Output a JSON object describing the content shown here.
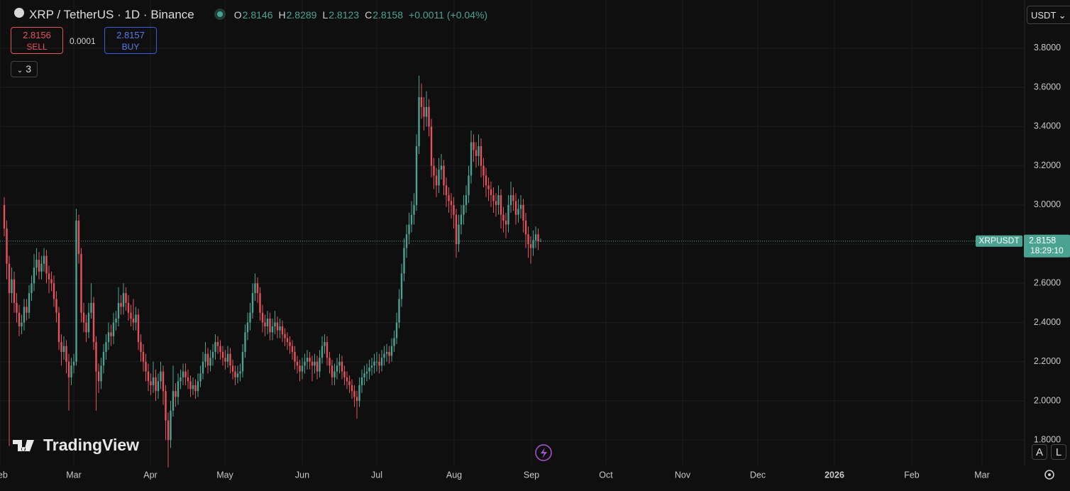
{
  "ui": {
    "title": "XRP / TetherUS · 1D · Binance",
    "o_label": "O",
    "o": "2.8146",
    "h_label": "H",
    "h": "2.8289",
    "l_label": "L",
    "l": "2.8123",
    "c_label": "C",
    "c": "2.8158",
    "change": "+0.0011 (+0.04%)",
    "sell_price": "2.8156",
    "sell": "SELL",
    "spread": "0.0001",
    "buy_price": "2.8157",
    "buy": "BUY",
    "indicators": "3",
    "currency": "USDT",
    "brand": "TradingView",
    "auto": "A",
    "log": "L"
  },
  "chart_data": {
    "type": "candlestick",
    "up_color": "#4aa391",
    "down_color": "#e5525d",
    "grid": true,
    "ylim": [
      1.674,
      4.046
    ],
    "yticks": [
      {
        "value": 1.8,
        "label": "1.8000"
      },
      {
        "value": 2.0,
        "label": "2.0000"
      },
      {
        "value": 2.2,
        "label": "2.2000"
      },
      {
        "value": 2.4,
        "label": "2.4000"
      },
      {
        "value": 2.6,
        "label": "2.6000"
      },
      {
        "value": 2.8,
        "label": "2.8000"
      },
      {
        "value": 3.0,
        "label": "3.0000"
      },
      {
        "value": 3.2,
        "label": "3.2000"
      },
      {
        "value": 3.4,
        "label": "3.4000"
      },
      {
        "value": 3.6,
        "label": "3.6000"
      },
      {
        "value": 3.8,
        "label": "3.8000"
      }
    ],
    "x_labels": [
      "Feb",
      "Mar",
      "Apr",
      "May",
      "Jun",
      "Jul",
      "Aug",
      "Sep",
      "Oct",
      "Nov",
      "Dec",
      "2026",
      "Feb",
      "Mar"
    ],
    "last_price": 2.8158,
    "symbol_tag": "XRPUSDT",
    "countdown": "18:29:10",
    "ohlc": [
      [
        3.0,
        3.04,
        2.84,
        2.88
      ],
      [
        2.88,
        2.92,
        2.62,
        2.7
      ],
      [
        2.7,
        2.74,
        1.77,
        2.55
      ],
      [
        2.55,
        2.68,
        2.5,
        2.62
      ],
      [
        2.62,
        2.66,
        2.45,
        2.5
      ],
      [
        2.5,
        2.55,
        2.4,
        2.45
      ],
      [
        2.45,
        2.49,
        2.33,
        2.38
      ],
      [
        2.38,
        2.44,
        2.34,
        2.4
      ],
      [
        2.4,
        2.52,
        2.36,
        2.48
      ],
      [
        2.48,
        2.52,
        2.41,
        2.45
      ],
      [
        2.45,
        2.59,
        2.42,
        2.55
      ],
      [
        2.55,
        2.64,
        2.51,
        2.6
      ],
      [
        2.6,
        2.75,
        2.56,
        2.68
      ],
      [
        2.68,
        2.78,
        2.64,
        2.72
      ],
      [
        2.72,
        2.76,
        2.62,
        2.66
      ],
      [
        2.66,
        2.74,
        2.62,
        2.7
      ],
      [
        2.7,
        2.78,
        2.66,
        2.74
      ],
      [
        2.74,
        2.77,
        2.6,
        2.65
      ],
      [
        2.65,
        2.69,
        2.55,
        2.62
      ],
      [
        2.62,
        2.66,
        2.56,
        2.6
      ],
      [
        2.6,
        2.64,
        2.48,
        2.52
      ],
      [
        2.52,
        2.56,
        2.4,
        2.45
      ],
      [
        2.45,
        2.48,
        2.26,
        2.3
      ],
      [
        2.3,
        2.34,
        2.18,
        2.25
      ],
      [
        2.25,
        2.33,
        2.21,
        2.28
      ],
      [
        2.28,
        2.31,
        2.14,
        2.2
      ],
      [
        2.2,
        2.24,
        1.95,
        2.12
      ],
      [
        2.12,
        2.22,
        2.08,
        2.18
      ],
      [
        2.18,
        2.24,
        2.14,
        2.2
      ],
      [
        2.2,
        2.98,
        2.18,
        2.92
      ],
      [
        2.92,
        2.95,
        2.7,
        2.75
      ],
      [
        2.75,
        2.78,
        2.4,
        2.45
      ],
      [
        2.45,
        2.5,
        2.35,
        2.4
      ],
      [
        2.4,
        2.44,
        2.3,
        2.35
      ],
      [
        2.35,
        2.5,
        2.32,
        2.45
      ],
      [
        2.45,
        2.6,
        2.42,
        2.5
      ],
      [
        2.5,
        2.53,
        2.26,
        2.3
      ],
      [
        2.3,
        2.33,
        1.95,
        2.15
      ],
      [
        2.15,
        2.19,
        2.04,
        2.1
      ],
      [
        2.1,
        2.22,
        2.06,
        2.18
      ],
      [
        2.18,
        2.29,
        2.14,
        2.25
      ],
      [
        2.25,
        2.34,
        2.21,
        2.3
      ],
      [
        2.3,
        2.4,
        2.26,
        2.35
      ],
      [
        2.35,
        2.39,
        2.28,
        2.33
      ],
      [
        2.33,
        2.45,
        2.29,
        2.4
      ],
      [
        2.4,
        2.46,
        2.36,
        2.42
      ],
      [
        2.42,
        2.58,
        2.38,
        2.5
      ],
      [
        2.5,
        2.54,
        2.44,
        2.48
      ],
      [
        2.48,
        2.6,
        2.44,
        2.55
      ],
      [
        2.55,
        2.58,
        2.46,
        2.5
      ],
      [
        2.5,
        2.54,
        2.41,
        2.45
      ],
      [
        2.45,
        2.49,
        2.38,
        2.42
      ],
      [
        2.42,
        2.52,
        2.36,
        2.4
      ],
      [
        2.4,
        2.48,
        2.36,
        2.44
      ],
      [
        2.44,
        2.47,
        2.26,
        2.3
      ],
      [
        2.3,
        2.34,
        2.2,
        2.25
      ],
      [
        2.25,
        2.29,
        2.15,
        2.2
      ],
      [
        2.2,
        2.24,
        2.1,
        2.15
      ],
      [
        2.15,
        2.19,
        2.05,
        2.1
      ],
      [
        2.1,
        2.14,
        2.03,
        2.08
      ],
      [
        2.08,
        2.2,
        2.04,
        2.12
      ],
      [
        2.12,
        2.16,
        2.0,
        2.05
      ],
      [
        2.05,
        2.14,
        2.01,
        2.1
      ],
      [
        2.1,
        2.2,
        2.06,
        2.15
      ],
      [
        2.15,
        2.18,
        1.98,
        2.05
      ],
      [
        2.05,
        2.08,
        1.8,
        1.9
      ],
      [
        1.9,
        1.94,
        1.66,
        1.8
      ],
      [
        1.8,
        2.0,
        1.76,
        1.95
      ],
      [
        1.95,
        2.18,
        1.92,
        2.05
      ],
      [
        2.05,
        2.09,
        1.97,
        2.02
      ],
      [
        2.02,
        2.14,
        1.98,
        2.1
      ],
      [
        2.1,
        2.16,
        2.06,
        2.12
      ],
      [
        2.12,
        2.19,
        2.08,
        2.15
      ],
      [
        2.15,
        2.19,
        2.08,
        2.12
      ],
      [
        2.12,
        2.16,
        2.06,
        2.1
      ],
      [
        2.1,
        2.13,
        2.02,
        2.06
      ],
      [
        2.06,
        2.12,
        2.03,
        2.08
      ],
      [
        2.08,
        2.11,
        2.01,
        2.05
      ],
      [
        2.05,
        2.14,
        2.02,
        2.1
      ],
      [
        2.1,
        2.18,
        2.07,
        2.14
      ],
      [
        2.14,
        2.25,
        2.11,
        2.2
      ],
      [
        2.2,
        2.3,
        2.17,
        2.24
      ],
      [
        2.24,
        2.27,
        2.14,
        2.18
      ],
      [
        2.18,
        2.26,
        2.15,
        2.22
      ],
      [
        2.22,
        2.29,
        2.18,
        2.25
      ],
      [
        2.25,
        2.34,
        2.21,
        2.3
      ],
      [
        2.3,
        2.33,
        2.24,
        2.28
      ],
      [
        2.28,
        2.31,
        2.21,
        2.25
      ],
      [
        2.25,
        2.28,
        2.18,
        2.22
      ],
      [
        2.22,
        2.26,
        2.16,
        2.2
      ],
      [
        2.2,
        2.28,
        2.17,
        2.24
      ],
      [
        2.24,
        2.27,
        2.14,
        2.18
      ],
      [
        2.18,
        2.21,
        2.11,
        2.15
      ],
      [
        2.15,
        2.18,
        2.08,
        2.12
      ],
      [
        2.12,
        2.18,
        2.09,
        2.14
      ],
      [
        2.14,
        2.19,
        2.1,
        2.15
      ],
      [
        2.15,
        2.29,
        2.12,
        2.25
      ],
      [
        2.25,
        2.39,
        2.22,
        2.35
      ],
      [
        2.35,
        2.45,
        2.31,
        2.4
      ],
      [
        2.4,
        2.5,
        2.36,
        2.45
      ],
      [
        2.45,
        2.6,
        2.42,
        2.55
      ],
      [
        2.55,
        2.65,
        2.51,
        2.6
      ],
      [
        2.6,
        2.63,
        2.5,
        2.55
      ],
      [
        2.55,
        2.58,
        2.41,
        2.45
      ],
      [
        2.45,
        2.49,
        2.35,
        2.4
      ],
      [
        2.4,
        2.44,
        2.33,
        2.38
      ],
      [
        2.38,
        2.46,
        2.34,
        2.42
      ],
      [
        2.42,
        2.45,
        2.31,
        2.35
      ],
      [
        2.35,
        2.42,
        2.31,
        2.38
      ],
      [
        2.38,
        2.46,
        2.34,
        2.4
      ],
      [
        2.4,
        2.43,
        2.32,
        2.36
      ],
      [
        2.36,
        2.42,
        2.32,
        2.38
      ],
      [
        2.38,
        2.41,
        2.3,
        2.34
      ],
      [
        2.34,
        2.37,
        2.28,
        2.32
      ],
      [
        2.32,
        2.35,
        2.26,
        2.3
      ],
      [
        2.3,
        2.33,
        2.24,
        2.28
      ],
      [
        2.28,
        2.31,
        2.21,
        2.25
      ],
      [
        2.25,
        2.28,
        2.16,
        2.2
      ],
      [
        2.2,
        2.23,
        2.14,
        2.18
      ],
      [
        2.18,
        2.21,
        2.1,
        2.15
      ],
      [
        2.15,
        2.22,
        2.11,
        2.18
      ],
      [
        2.18,
        2.24,
        2.14,
        2.2
      ],
      [
        2.2,
        2.26,
        2.16,
        2.22
      ],
      [
        2.22,
        2.25,
        2.16,
        2.2
      ],
      [
        2.2,
        2.23,
        2.1,
        2.18
      ],
      [
        2.18,
        2.24,
        2.14,
        2.2
      ],
      [
        2.2,
        2.23,
        2.11,
        2.15
      ],
      [
        2.15,
        2.26,
        2.12,
        2.22
      ],
      [
        2.22,
        2.33,
        2.19,
        2.28
      ],
      [
        2.28,
        2.34,
        2.24,
        2.3
      ],
      [
        2.3,
        2.33,
        2.18,
        2.22
      ],
      [
        2.22,
        2.25,
        2.14,
        2.18
      ],
      [
        2.18,
        2.21,
        2.08,
        2.12
      ],
      [
        2.12,
        2.19,
        2.08,
        2.15
      ],
      [
        2.15,
        2.22,
        2.11,
        2.18
      ],
      [
        2.18,
        2.24,
        2.14,
        2.2
      ],
      [
        2.2,
        2.23,
        2.11,
        2.15
      ],
      [
        2.15,
        2.18,
        2.08,
        2.12
      ],
      [
        2.12,
        2.15,
        2.06,
        2.1
      ],
      [
        2.1,
        2.13,
        2.04,
        2.08
      ],
      [
        2.08,
        2.11,
        2.01,
        2.05
      ],
      [
        2.05,
        2.08,
        1.97,
        2.02
      ],
      [
        2.02,
        2.05,
        1.91,
        2.0
      ],
      [
        2.0,
        2.12,
        1.97,
        2.08
      ],
      [
        2.08,
        2.16,
        2.04,
        2.12
      ],
      [
        2.12,
        2.18,
        2.08,
        2.14
      ],
      [
        2.14,
        2.19,
        2.1,
        2.15
      ],
      [
        2.15,
        2.21,
        2.11,
        2.17
      ],
      [
        2.17,
        2.22,
        2.13,
        2.18
      ],
      [
        2.18,
        2.24,
        2.14,
        2.2
      ],
      [
        2.2,
        2.25,
        2.15,
        2.2
      ],
      [
        2.2,
        2.24,
        2.14,
        2.18
      ],
      [
        2.18,
        2.26,
        2.15,
        2.22
      ],
      [
        2.22,
        2.28,
        2.18,
        2.24
      ],
      [
        2.24,
        2.29,
        2.2,
        2.25
      ],
      [
        2.25,
        2.28,
        2.19,
        2.23
      ],
      [
        2.23,
        2.32,
        2.2,
        2.28
      ],
      [
        2.28,
        2.36,
        2.25,
        2.32
      ],
      [
        2.32,
        2.45,
        2.29,
        2.4
      ],
      [
        2.4,
        2.57,
        2.37,
        2.52
      ],
      [
        2.52,
        2.7,
        2.48,
        2.65
      ],
      [
        2.65,
        2.83,
        2.61,
        2.78
      ],
      [
        2.78,
        2.9,
        2.73,
        2.85
      ],
      [
        2.85,
        2.96,
        2.8,
        2.9
      ],
      [
        2.9,
        3.02,
        2.86,
        2.95
      ],
      [
        2.95,
        3.06,
        2.9,
        3.0
      ],
      [
        3.0,
        3.36,
        2.97,
        3.3
      ],
      [
        3.3,
        3.66,
        3.26,
        3.55
      ],
      [
        3.55,
        3.62,
        3.44,
        3.5
      ],
      [
        3.5,
        3.55,
        3.38,
        3.45
      ],
      [
        3.45,
        3.58,
        3.4,
        3.5
      ],
      [
        3.5,
        3.54,
        3.35,
        3.4
      ],
      [
        3.4,
        3.44,
        3.14,
        3.2
      ],
      [
        3.2,
        3.24,
        3.08,
        3.15
      ],
      [
        3.15,
        3.19,
        3.04,
        3.1
      ],
      [
        3.1,
        3.24,
        3.06,
        3.18
      ],
      [
        3.18,
        3.26,
        3.13,
        3.2
      ],
      [
        3.2,
        3.23,
        3.05,
        3.1
      ],
      [
        3.1,
        3.14,
        2.99,
        3.05
      ],
      [
        3.05,
        3.09,
        2.96,
        3.02
      ],
      [
        3.02,
        3.06,
        2.93,
        3.0
      ],
      [
        3.0,
        3.04,
        2.88,
        2.95
      ],
      [
        2.95,
        2.98,
        2.73,
        2.8
      ],
      [
        2.8,
        2.95,
        2.76,
        2.9
      ],
      [
        2.9,
        3.0,
        2.85,
        2.95
      ],
      [
        2.95,
        3.05,
        2.9,
        3.0
      ],
      [
        3.0,
        3.1,
        2.96,
        3.05
      ],
      [
        3.05,
        3.2,
        3.01,
        3.15
      ],
      [
        3.15,
        3.38,
        3.11,
        3.32
      ],
      [
        3.32,
        3.36,
        3.22,
        3.28
      ],
      [
        3.28,
        3.32,
        3.19,
        3.25
      ],
      [
        3.25,
        3.36,
        3.2,
        3.3
      ],
      [
        3.3,
        3.34,
        3.14,
        3.2
      ],
      [
        3.2,
        3.24,
        3.09,
        3.15
      ],
      [
        3.15,
        3.19,
        3.04,
        3.1
      ],
      [
        3.1,
        3.14,
        3.02,
        3.08
      ],
      [
        3.08,
        3.12,
        2.99,
        3.05
      ],
      [
        3.05,
        3.09,
        2.96,
        3.02
      ],
      [
        3.02,
        3.06,
        2.94,
        3.0
      ],
      [
        3.0,
        3.1,
        2.95,
        3.05
      ],
      [
        3.05,
        3.08,
        2.88,
        2.95
      ],
      [
        2.95,
        2.99,
        2.86,
        2.92
      ],
      [
        2.92,
        2.96,
        2.83,
        2.9
      ],
      [
        2.9,
        3.05,
        2.86,
        3.0
      ],
      [
        3.0,
        3.12,
        2.96,
        3.05
      ],
      [
        3.05,
        3.09,
        2.97,
        3.02
      ],
      [
        3.02,
        3.06,
        2.9,
        2.95
      ],
      [
        2.95,
        3.03,
        2.91,
        2.98
      ],
      [
        2.98,
        3.05,
        2.93,
        3.0
      ],
      [
        3.0,
        3.03,
        2.86,
        2.92
      ],
      [
        2.92,
        2.96,
        2.78,
        2.85
      ],
      [
        2.85,
        2.89,
        2.73,
        2.8
      ],
      [
        2.8,
        2.84,
        2.7,
        2.78
      ],
      [
        2.78,
        2.87,
        2.74,
        2.82
      ],
      [
        2.82,
        2.89,
        2.78,
        2.85
      ],
      [
        2.85,
        2.88,
        2.77,
        2.8146
      ],
      [
        2.8146,
        2.8289,
        2.8123,
        2.8158
      ]
    ]
  }
}
